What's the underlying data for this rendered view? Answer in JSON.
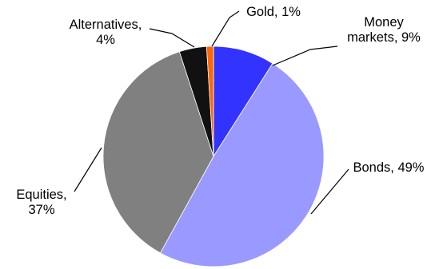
{
  "chart_data": {
    "type": "pie",
    "title": "",
    "start_angle_deg": 0,
    "direction": "clockwise",
    "slices": [
      {
        "label": "Money markets",
        "value": 9,
        "color": "#3333ff",
        "text_lines": [
          "Money",
          "markets, 9%"
        ]
      },
      {
        "label": "Bonds",
        "value": 49,
        "color": "#9999ff",
        "text_lines": [
          "Bonds, 49%"
        ]
      },
      {
        "label": "Equities",
        "value": 37,
        "color": "#808080",
        "text_lines": [
          "Equities,",
          "37%"
        ]
      },
      {
        "label": "Alternatives",
        "value": 4,
        "color": "#111111",
        "text_lines": [
          "Alternatives,",
          "4%"
        ]
      },
      {
        "label": "Gold",
        "value": 1,
        "color": "#ff6600",
        "text_lines": [
          "Gold, 1%"
        ]
      }
    ],
    "legend": "none",
    "slice_border_color": "#ffffff"
  }
}
